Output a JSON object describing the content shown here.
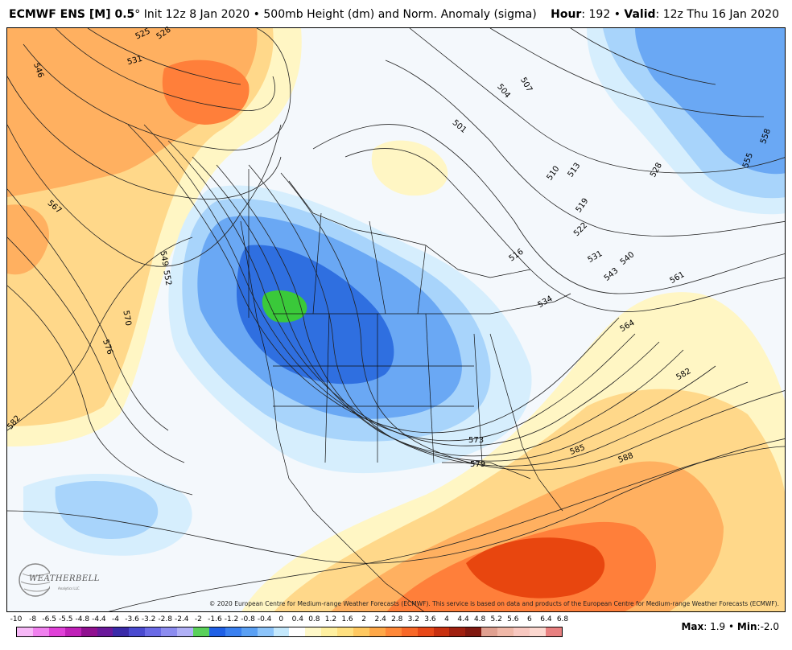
{
  "header": {
    "model": "ECMWF ENS [M] 0.5",
    "degree": "°",
    "init": "Init 12z 8 Jan 2020",
    "bullet": "•",
    "product": "500mb Height (dm) and Norm. Anomaly (sigma)",
    "hour_label": "Hour",
    "hour_value": ": 192",
    "valid_label": "Valid",
    "valid_value": ": 12z Thu 16 Jan 2020"
  },
  "copyright": "© 2020 European Centre for Medium-range Weather Forecasts (ECMWF). This service is based on data and products of the European Centre for Medium-range Weather Forecasts (ECMWF).",
  "logo": {
    "text": "WEATHERBELL",
    "sub": "Analytics LLC"
  },
  "colorbar": {
    "labels": [
      "-10",
      "-8",
      "-6.5",
      "-5.5",
      "-4.8",
      "-4.4",
      "-4",
      "-3.6",
      "-3.2",
      "-2.8",
      "-2.4",
      "-2",
      "-1.6",
      "-1.2",
      "-0.8",
      "-0.4",
      "0",
      "0.4",
      "0.8",
      "1.2",
      "1.6",
      "2",
      "2.4",
      "2.8",
      "3.2",
      "3.6",
      "4",
      "4.4",
      "4.8",
      "5.2",
      "5.6",
      "6",
      "6.4",
      "6.8"
    ],
    "colors": [
      "#f7b8f7",
      "#f080ee",
      "#e040d8",
      "#c020b8",
      "#901090",
      "#6a189a",
      "#3a2aa8",
      "#4a4ad0",
      "#6a6ae6",
      "#8c8cf0",
      "#b0b0f6",
      "#5ad05a",
      "#1f60e6",
      "#3a80f0",
      "#5aa0f4",
      "#8cc4fa",
      "#c4e8fc",
      "#ffffff",
      "#fff8c8",
      "#fff0a0",
      "#ffe080",
      "#ffc860",
      "#ffa848",
      "#ff8838",
      "#f86828",
      "#e84818",
      "#c83010",
      "#a02010",
      "#801810",
      "#e0a090",
      "#f0b8a8",
      "#f8c8c0",
      "#fcd8d0",
      "#e88080"
    ]
  },
  "stats": {
    "max_label": "Max",
    "max_value": ": 1.9",
    "min_label": "Min",
    "min_value": ":-2.0",
    "bullet": "•"
  },
  "contour_labels": [
    "525",
    "528",
    "531",
    "546",
    "567",
    "549",
    "552",
    "570",
    "576",
    "582",
    "501",
    "504",
    "507",
    "510",
    "513",
    "516",
    "519",
    "522",
    "531",
    "534",
    "540",
    "543",
    "528",
    "555",
    "558",
    "561",
    "564",
    "582",
    "573",
    "579",
    "585",
    "588"
  ],
  "anomaly_colors": {
    "neg_core": "#2f6fe0",
    "neg_mid": "#6aa8f4",
    "neg_light": "#a8d4fb",
    "neg_faint": "#d6eefd",
    "neg_green": "#3ac93a",
    "pos_faint": "#fff6c4",
    "pos_light": "#ffd88a",
    "pos_mid": "#ffb060",
    "pos_strong": "#ff7f3a",
    "pos_core": "#e8460f"
  }
}
